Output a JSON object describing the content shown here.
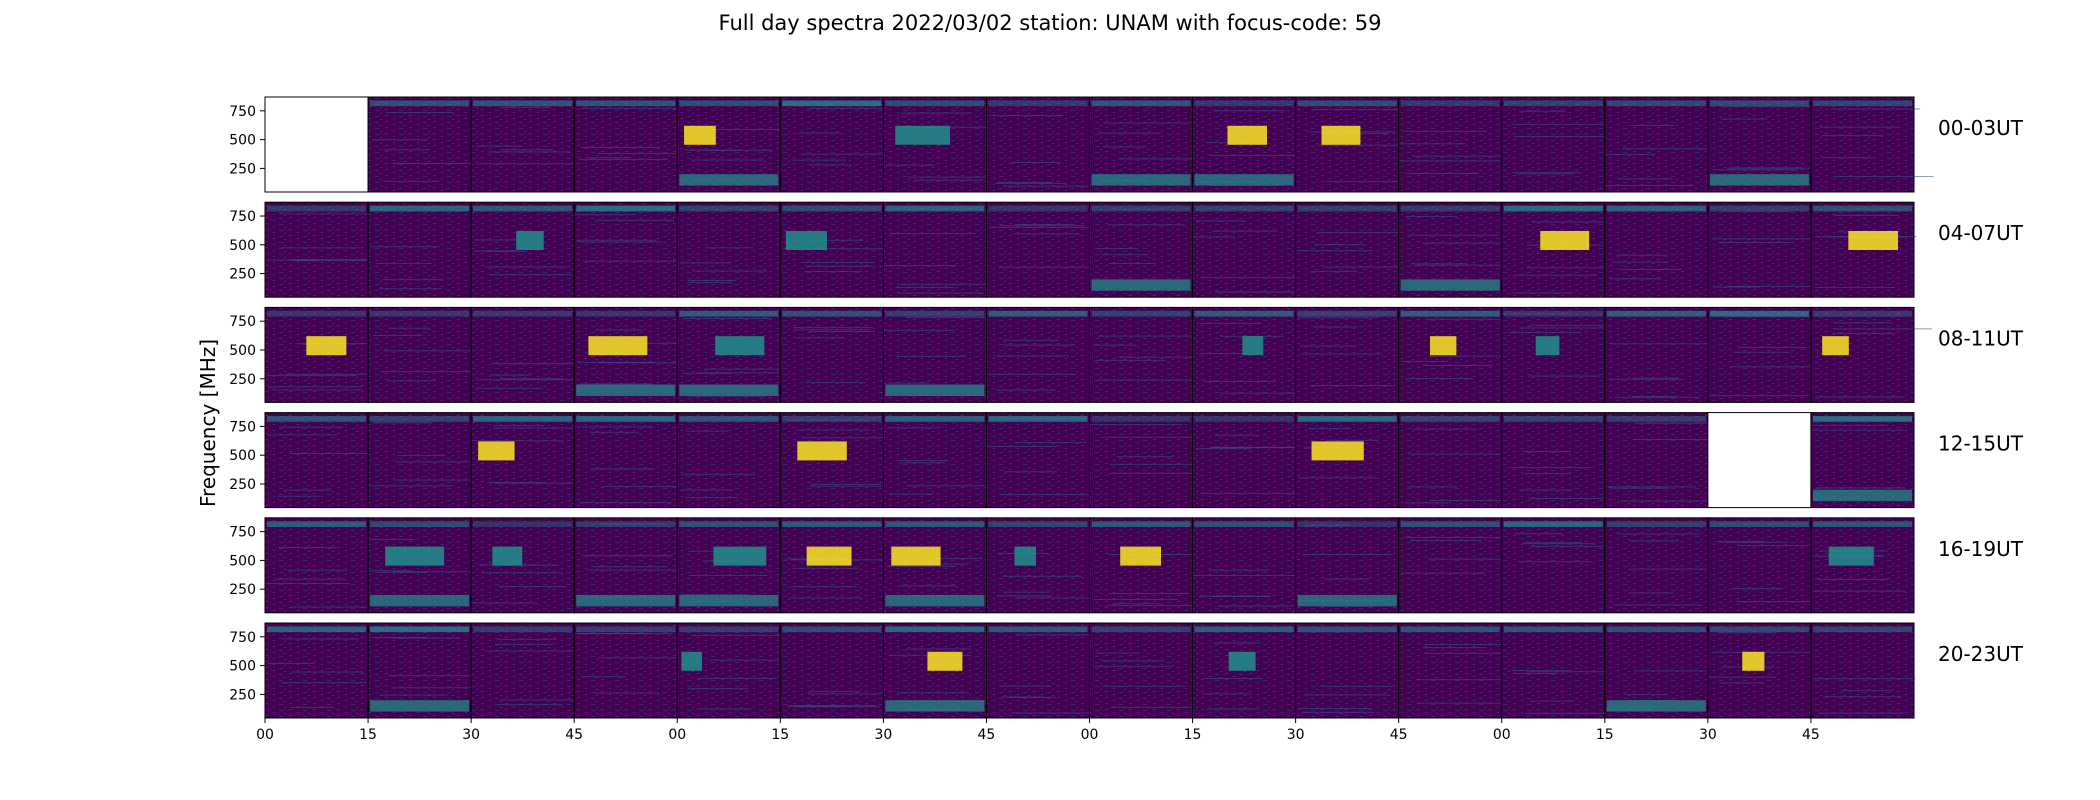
{
  "chart_data": {
    "type": "heatmap",
    "title": "Full day spectra 2022/03/02 station: UNAM with focus-code: 59",
    "ylabel": "Frequency [MHz]",
    "ylim": [
      45,
      870
    ],
    "yticks": [
      250,
      500,
      750
    ],
    "xtick_labels": [
      "00",
      "15",
      "30",
      "45",
      "00",
      "15",
      "30",
      "45",
      "00",
      "15",
      "30",
      "45",
      "00",
      "15",
      "30",
      "45"
    ],
    "colormap": "viridis",
    "colors": {
      "low": "#440154",
      "mid": "#21918c",
      "high": "#fde725"
    },
    "rows": [
      {
        "label": "00-03UT",
        "missing_panels": [
          0
        ]
      },
      {
        "label": "04-07UT",
        "missing_panels": []
      },
      {
        "label": "08-11UT",
        "missing_panels": []
      },
      {
        "label": "12-15UT",
        "missing_panels": [
          14
        ]
      },
      {
        "label": "16-19UT",
        "missing_panels": []
      },
      {
        "label": "20-23UT",
        "missing_panels": []
      }
    ],
    "panels_per_row": 16,
    "minutes_per_panel": 15
  }
}
